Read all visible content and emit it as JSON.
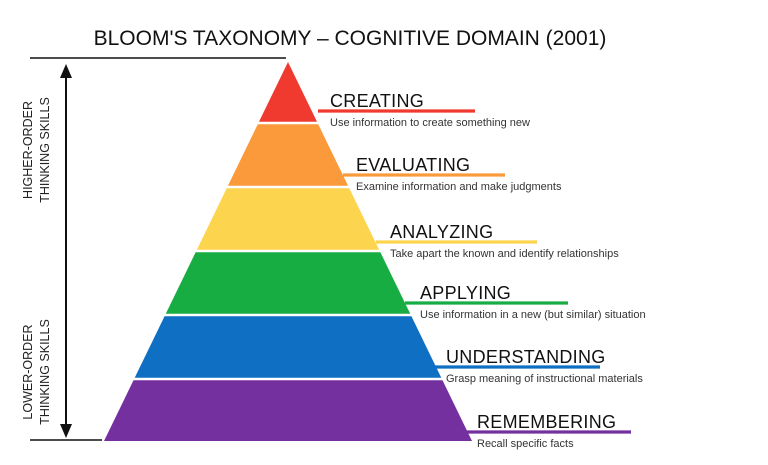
{
  "title": "BLOOM'S TAXONOMY – COGNITIVE DOMAIN (2001)",
  "side_labels": {
    "higher_line1": "HIGHER-ORDER",
    "higher_line2": "THINKING SKILLS",
    "lower_line1": "LOWER-ORDER",
    "lower_line2": "THINKING SKILLS"
  },
  "levels": [
    {
      "name": "CREATING",
      "description": "Use information to create something new",
      "color": "#f03a2f"
    },
    {
      "name": "EVALUATING",
      "description": "Examine information and make judgments",
      "color": "#fb9a3a"
    },
    {
      "name": "ANALYZING",
      "description": "Take apart the known and identify relationships",
      "color": "#fdd44e"
    },
    {
      "name": "APPLYING",
      "description": "Use information in a new (but similar) situation",
      "color": "#18ad43"
    },
    {
      "name": "UNDERSTANDING",
      "description": "Grasp meaning of instructional materials",
      "color": "#0f6fc2"
    },
    {
      "name": "REMEMBERING",
      "description": "Recall specific facts",
      "color": "#7530a0"
    }
  ]
}
